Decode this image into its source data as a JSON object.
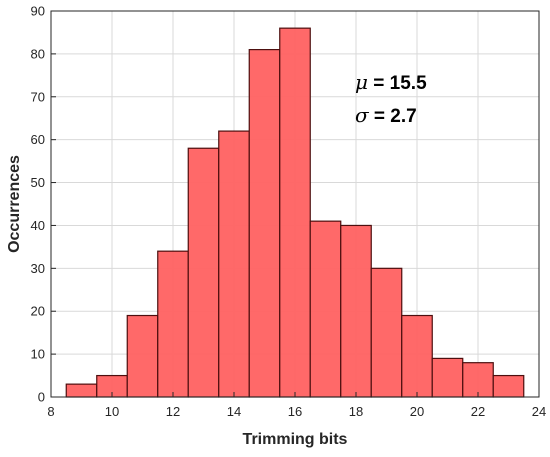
{
  "chart_data": {
    "type": "bar",
    "subtype": "histogram",
    "xlabel": "Trimming bits",
    "ylabel": "Occurrences",
    "xlim": [
      8,
      24
    ],
    "ylim": [
      0,
      90
    ],
    "xticks": [
      8,
      10,
      12,
      14,
      16,
      18,
      20,
      22,
      24
    ],
    "yticks": [
      0,
      10,
      20,
      30,
      40,
      50,
      60,
      70,
      80,
      90
    ],
    "bin_width": 1,
    "bins": [
      {
        "center": 9,
        "count": 3
      },
      {
        "center": 10,
        "count": 5
      },
      {
        "center": 11,
        "count": 19
      },
      {
        "center": 12,
        "count": 34
      },
      {
        "center": 13,
        "count": 58
      },
      {
        "center": 14,
        "count": 62
      },
      {
        "center": 15,
        "count": 81
      },
      {
        "center": 16,
        "count": 86
      },
      {
        "center": 17,
        "count": 41
      },
      {
        "center": 18,
        "count": 40
      },
      {
        "center": 19,
        "count": 30
      },
      {
        "center": 20,
        "count": 19
      },
      {
        "center": 21,
        "count": 9
      },
      {
        "center": 22,
        "count": 8
      },
      {
        "center": 23,
        "count": 5
      }
    ],
    "grid": true,
    "annotations": [
      {
        "symbol": "μ",
        "text": " = 15.5"
      },
      {
        "symbol": "σ",
        "text": " = 2.7"
      }
    ],
    "colors": {
      "bar_fill": "#ff6464",
      "bar_edge": "#4d0f0f",
      "grid": "#d9d9d9",
      "axis": "#262626"
    }
  }
}
